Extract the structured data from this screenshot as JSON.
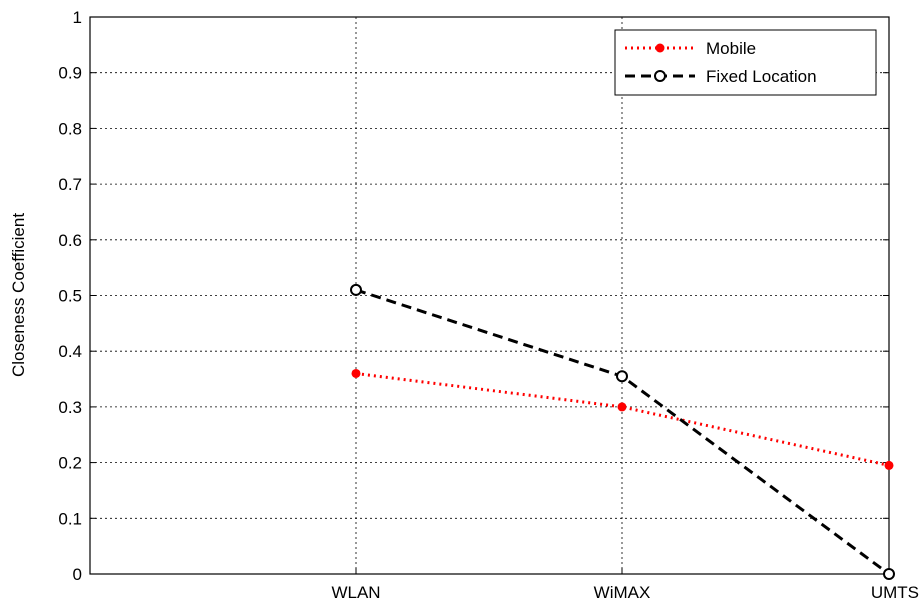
{
  "chart_data": {
    "type": "line",
    "categories": [
      "WLAN",
      "WiMAX",
      "UMTS"
    ],
    "ylabel": "Closeness Coefficient",
    "xlabel": "",
    "ylim": [
      0,
      1
    ],
    "yticks": [
      "0",
      "0.1",
      "0.2",
      "0.3",
      "0.4",
      "0.5",
      "0.6",
      "0.7",
      "0.8",
      "0.9",
      "1"
    ],
    "grid": true,
    "legend_position": "top-right",
    "series": [
      {
        "name": "Mobile",
        "values": [
          0.36,
          0.3,
          0.195
        ],
        "color": "#ff0000",
        "line_style": "dotted",
        "marker": "filled-circle"
      },
      {
        "name": "Fixed Location",
        "values": [
          0.51,
          0.355,
          0.0
        ],
        "color": "#000000",
        "line_style": "dashed",
        "marker": "open-circle"
      }
    ]
  }
}
